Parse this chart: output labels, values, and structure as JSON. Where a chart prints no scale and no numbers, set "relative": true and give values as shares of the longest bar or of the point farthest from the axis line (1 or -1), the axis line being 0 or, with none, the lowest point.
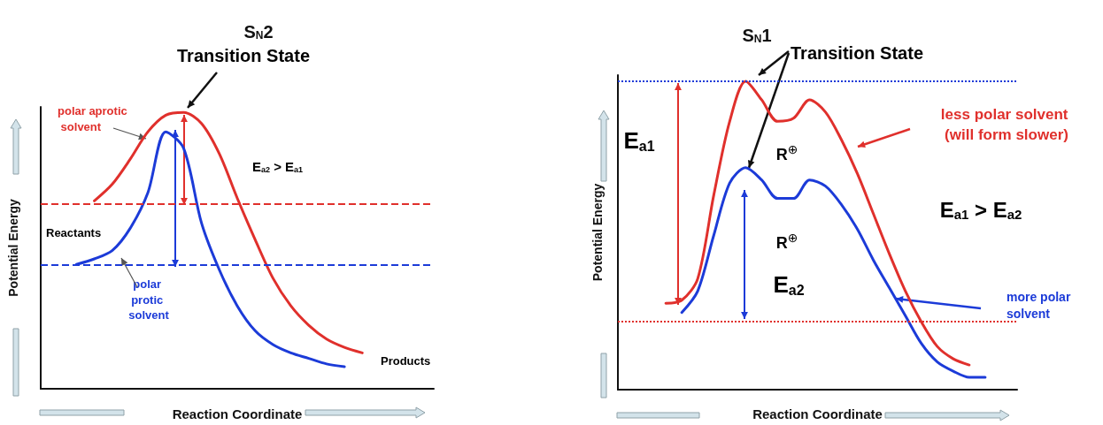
{
  "chart_data": [
    {
      "type": "line",
      "relative": true,
      "title": "S$_{N}$2",
      "xlabel": "Reaction Coordinate",
      "ylabel": "Potential Energy",
      "grid": false,
      "marker": "none",
      "categories": [
        null,
        null,
        null,
        null,
        null,
        null,
        null,
        null,
        null,
        null,
        null,
        null,
        null,
        null,
        null,
        null,
        null,
        null,
        null,
        null,
        null,
        null,
        null
      ],
      "series": [
        {
          "name": "polar aprotic solvent",
          "color": "#e0302c",
          "values": [
            null,
            null,
            null,
            0.68,
            0.74,
            0.83,
            0.93,
            0.99,
            1,
            0.96,
            0.85,
            0.69,
            0.54,
            0.4,
            0.3,
            0.23,
            0.18,
            0.15,
            0.13,
            null,
            null,
            null,
            null
          ]
        },
        {
          "name": "polar protic solvent",
          "color": "#1c3bd8",
          "values": [
            null,
            null,
            0.45,
            0.47,
            0.5,
            0.58,
            0.71,
            0.93,
            0.87,
            0.6,
            0.43,
            0.3,
            0.21,
            0.16,
            0.13,
            0.11,
            0.09,
            0.08,
            null,
            null,
            null,
            null,
            null
          ]
        }
      ],
      "ref_lines": [
        {
          "axis": "y",
          "value": 0.67,
          "color": "#e0302c",
          "line_style": "dashed"
        },
        {
          "axis": "y",
          "value": 0.45,
          "color": "#1c3bd8",
          "line_style": "dashed"
        }
      ],
      "annotations": [
        "Transition State",
        "Reactants",
        "Products",
        "E$_{a2}$ > E$_{a1}$"
      ]
    },
    {
      "type": "line",
      "relative": true,
      "title": "S$_{N}$1",
      "xlabel": "Reaction Coordinate",
      "ylabel": "Potential Energy",
      "grid": false,
      "marker": "none",
      "categories": [
        null,
        null,
        null,
        null,
        null,
        null,
        null,
        null,
        null,
        null,
        null,
        null,
        null,
        null,
        null,
        null,
        null,
        null,
        null,
        null,
        null,
        null,
        null,
        null,
        null,
        null
      ],
      "series": [
        {
          "name": "less polar solvent (will form slower)",
          "color": "#e0302c",
          "values": [
            null,
            null,
            null,
            0.28,
            0.29,
            0.36,
            0.63,
            0.87,
            1,
            0.94,
            0.87,
            0.88,
            0.94,
            0.9,
            0.81,
            0.7,
            0.57,
            0.44,
            0.32,
            0.22,
            0.14,
            0.1,
            0.08,
            null,
            null,
            null
          ]
        },
        {
          "name": "more polar solvent",
          "color": "#1c3bd8",
          "values": [
            null,
            null,
            null,
            null,
            0.25,
            0.32,
            0.5,
            0.67,
            0.72,
            0.68,
            0.62,
            0.62,
            0.68,
            0.66,
            0.6,
            0.52,
            0.42,
            0.33,
            0.24,
            0.15,
            0.09,
            0.06,
            0.04,
            0.04,
            null,
            null
          ]
        }
      ],
      "ref_lines": [
        {
          "axis": "y",
          "value": 1,
          "color": "#1c3bd8",
          "line_style": "dotted"
        },
        {
          "axis": "y",
          "value": 0.22,
          "color": "#e0302c",
          "line_style": "dotted"
        }
      ],
      "annotations": [
        "Transition State",
        "R$^{⊕}$",
        "R$^{⊕}$",
        "E$_{a1}$",
        "E$_{a2}$",
        "E$_{a1}$ > E$_{a2}$"
      ]
    }
  ]
}
